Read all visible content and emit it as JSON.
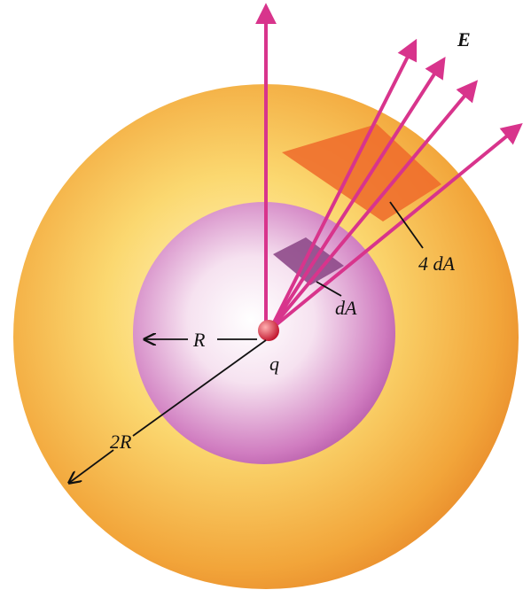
{
  "labels": {
    "field": "E",
    "outer_area": "4 dA",
    "inner_area": "dA",
    "inner_radius": "R",
    "charge": "q",
    "outer_radius": "2R"
  }
}
